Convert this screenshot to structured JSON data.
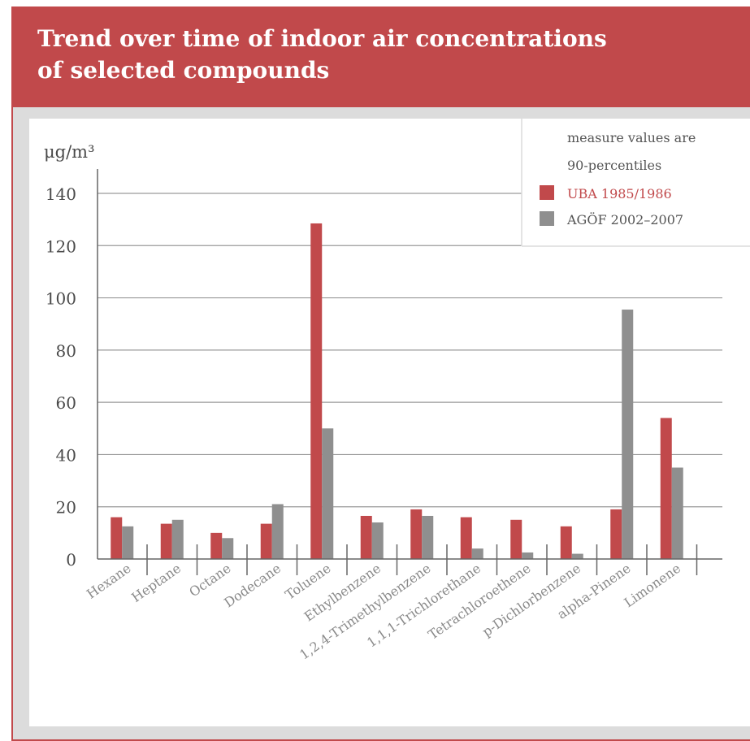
{
  "header": {
    "title": "Trend over time of indoor air concentrations\nof selected compounds"
  },
  "colors": {
    "accent": "#c1494b",
    "series1": "#c1494b",
    "series2": "#8f8f8f",
    "note_text": "#555555",
    "axis_text": "#4a4a4a"
  },
  "chart_data": {
    "type": "bar",
    "ylabel": "μg/m³",
    "ylim": [
      0,
      140
    ],
    "yticks": [
      0,
      20,
      40,
      60,
      80,
      100,
      120,
      140
    ],
    "grid": true,
    "categories": [
      "Hexane",
      "Heptane",
      "Octane",
      "Dodecane",
      "Toluene",
      "Ethylbenzene",
      "1,2,4-Trimethylbenzene",
      "1,1,1-Trichlorethane",
      "Tetrachloroethene",
      "p-Dichlorbenzene",
      "alpha-Pinene",
      "Limonene"
    ],
    "series": [
      {
        "name": "UBA 1985/1986",
        "values": [
          16,
          13.5,
          10,
          13.5,
          128.5,
          16.5,
          19,
          16,
          15,
          12.5,
          19,
          54
        ]
      },
      {
        "name": "AGÖF 2002–2007",
        "values": [
          12.5,
          15,
          8,
          21,
          50,
          14,
          16.5,
          4,
          2.5,
          2,
          95.5,
          35
        ]
      }
    ],
    "legend": {
      "placement": "top-right",
      "note_line1": "measure values are",
      "note_line2": "90-percentiles"
    }
  }
}
